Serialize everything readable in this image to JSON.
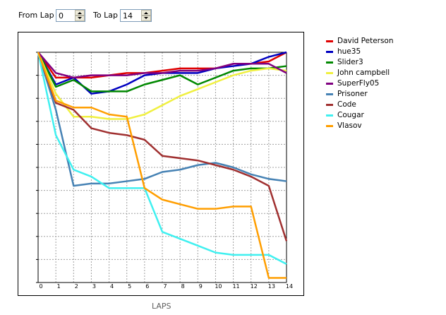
{
  "controls": {
    "from_label": "From Lap",
    "from_value": "0",
    "to_label": "To Lap",
    "to_value": "14"
  },
  "chart_data": {
    "type": "line",
    "xlabel": "LAPS",
    "x": [
      0,
      1,
      2,
      3,
      4,
      5,
      6,
      7,
      8,
      9,
      10,
      11,
      12,
      13,
      14
    ],
    "xlim": [
      0,
      14
    ],
    "ylim": [
      1,
      11
    ],
    "y_inverted": true,
    "y_ticks_labeled": false,
    "grid": true,
    "legend_position": "right",
    "series": [
      {
        "name": "David Peterson",
        "color": "#e00000",
        "values": [
          1,
          2.1,
          2.1,
          2.1,
          2.0,
          1.9,
          1.9,
          1.8,
          1.7,
          1.7,
          1.7,
          1.5,
          1.5,
          1.4,
          1.0
        ]
      },
      {
        "name": "hue35",
        "color": "#0000c0",
        "values": [
          1,
          2.4,
          2.1,
          2.8,
          2.7,
          2.4,
          2.0,
          1.9,
          1.9,
          1.9,
          1.7,
          1.6,
          1.5,
          1.2,
          1.0
        ]
      },
      {
        "name": "Slider3",
        "color": "#008800",
        "values": [
          1,
          2.5,
          2.2,
          2.7,
          2.7,
          2.7,
          2.4,
          2.2,
          2.0,
          2.4,
          2.1,
          1.8,
          1.7,
          1.7,
          1.6
        ]
      },
      {
        "name": "John campbell",
        "color": "#f0f040",
        "values": [
          1,
          2.8,
          3.8,
          3.8,
          3.9,
          3.9,
          3.7,
          3.3,
          2.9,
          2.6,
          2.3,
          2.0,
          1.8,
          1.7,
          1.8
        ]
      },
      {
        "name": "SuperFly05",
        "color": "#800080",
        "values": [
          1,
          1.9,
          2.1,
          2.0,
          2.0,
          2.0,
          1.9,
          1.9,
          1.8,
          1.8,
          1.7,
          1.5,
          1.5,
          1.5,
          1.9
        ]
      },
      {
        "name": "Prisoner",
        "color": "#4682b4",
        "values": [
          1,
          3.5,
          6.8,
          6.7,
          6.7,
          6.6,
          6.5,
          6.2,
          6.1,
          5.9,
          5.8,
          6.0,
          6.3,
          6.5,
          6.6
        ]
      },
      {
        "name": "Code",
        "color": "#a03030",
        "values": [
          1,
          3.2,
          3.5,
          4.3,
          4.5,
          4.6,
          4.8,
          5.5,
          5.6,
          5.7,
          5.9,
          6.1,
          6.4,
          6.8,
          9.2
        ]
      },
      {
        "name": "Cougar",
        "color": "#40f0f0",
        "values": [
          1,
          4.6,
          6.1,
          6.4,
          6.9,
          6.9,
          6.9,
          8.8,
          9.1,
          9.4,
          9.7,
          9.8,
          9.8,
          9.8,
          10.2
        ]
      },
      {
        "name": "Vlasov",
        "color": "#ff9e00",
        "values": [
          1,
          3.1,
          3.4,
          3.4,
          3.7,
          3.8,
          6.9,
          7.4,
          7.6,
          7.8,
          7.8,
          7.7,
          7.7,
          10.8,
          10.8
        ]
      }
    ]
  }
}
